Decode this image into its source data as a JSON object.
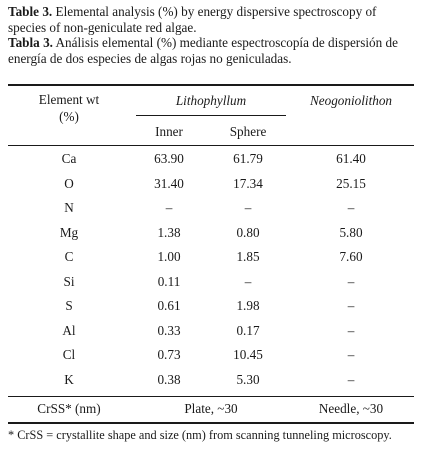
{
  "caption": {
    "en_label": "Table 3.",
    "en_text": " Elemental analysis (%) by energy dispersive spectroscopy of species of non-geniculate red algae.",
    "es_label": "Tabla 3.",
    "es_text": " Análisis elemental (%) mediante espectroscopía de dispersión de energía de dos especies de algas rojas no geniculadas."
  },
  "header": {
    "element_line1": "Element wt",
    "element_line2": "(%)",
    "lithophyllum": "Lithophyllum",
    "neogoniolithon": "Neogoniolithon",
    "inner": "Inner",
    "sphere": "Sphere"
  },
  "rows": [
    {
      "element": "Ca",
      "inner": "63.90",
      "sphere": "61.79",
      "neo": "61.40"
    },
    {
      "element": "O",
      "inner": "31.40",
      "sphere": "17.34",
      "neo": "25.15"
    },
    {
      "element": "N",
      "inner": "–",
      "sphere": "–",
      "neo": "–"
    },
    {
      "element": "Mg",
      "inner": "1.38",
      "sphere": "0.80",
      "neo": "5.80"
    },
    {
      "element": "C",
      "inner": "1.00",
      "sphere": "1.85",
      "neo": "7.60"
    },
    {
      "element": "Si",
      "inner": "0.11",
      "sphere": "–",
      "neo": "–"
    },
    {
      "element": "S",
      "inner": "0.61",
      "sphere": "1.98",
      "neo": "–"
    },
    {
      "element": "Al",
      "inner": "0.33",
      "sphere": "0.17",
      "neo": "–"
    },
    {
      "element": "Cl",
      "inner": "0.73",
      "sphere": "10.45",
      "neo": "–"
    },
    {
      "element": "K",
      "inner": "0.38",
      "sphere": "5.30",
      "neo": "–"
    }
  ],
  "crss": {
    "label": "CrSS* (nm)",
    "lithophyllum": "Plate, ~30",
    "neogoniolithon": "Needle, ~30"
  },
  "footnote": "* CrSS = crystallite shape and size (nm) from scanning tunneling microscopy."
}
